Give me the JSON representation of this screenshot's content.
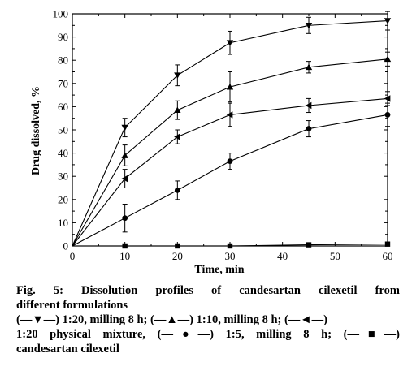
{
  "chart_data": {
    "type": "line",
    "xlabel": "Time, min",
    "ylabel": "Drug dissolved, %",
    "xlim": [
      0,
      60
    ],
    "ylim": [
      0,
      100
    ],
    "xticks": [
      0,
      10,
      20,
      30,
      40,
      50,
      60
    ],
    "yticks": [
      0,
      10,
      20,
      30,
      40,
      50,
      60,
      70,
      80,
      90,
      100
    ],
    "grid": false,
    "x": [
      0,
      10,
      20,
      30,
      45,
      60
    ],
    "series": [
      {
        "marker": "triangle-down",
        "values": [
          0,
          51,
          73.5,
          87.5,
          95,
          97
        ],
        "err": [
          0,
          4,
          4.5,
          5,
          3.5,
          4
        ]
      },
      {
        "marker": "triangle-up",
        "values": [
          0,
          39,
          58.5,
          68.5,
          77,
          80.5
        ],
        "err": [
          0,
          4.5,
          4,
          6.5,
          2.5,
          3
        ]
      },
      {
        "marker": "triangle-left",
        "values": [
          0,
          29,
          47,
          56.5,
          60.5,
          63.5
        ],
        "err": [
          0,
          4,
          3,
          5,
          3,
          3
        ]
      },
      {
        "marker": "circle",
        "values": [
          0,
          12,
          24,
          36.5,
          50.5,
          56.5
        ],
        "err": [
          0,
          6,
          4,
          3.5,
          3.5,
          5
        ]
      },
      {
        "marker": "square",
        "values": [
          0,
          0,
          0,
          0,
          0.5,
          0.8
        ],
        "err": [
          0,
          0,
          0,
          0,
          0,
          0
        ]
      }
    ]
  },
  "caption": {
    "line1": "Fig. 5: Dissolution profiles of candesartan cilexetil from",
    "line2": "different formulations",
    "line3": "(—▼—) 1:20, milling 8 h; (—▲—) 1:10, milling 8 h; (—◄—)",
    "line4": "1:20 physical mixture, (—●—) 1:5, milling 8 h; (—■—)",
    "line5": "candesartan cilexetil"
  }
}
